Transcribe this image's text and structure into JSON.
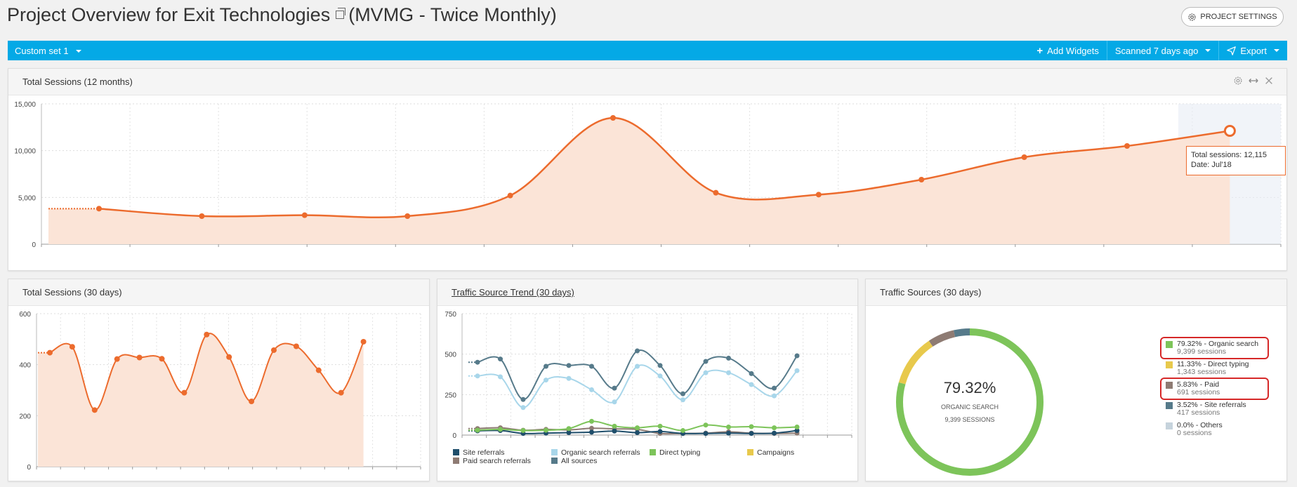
{
  "header": {
    "title": "Project Overview for Exit Technologies",
    "subtitle": "(MVMG - Twice Monthly)",
    "settings_label": "PROJECT SETTINGS"
  },
  "toolbar": {
    "custom_set": "Custom set 1",
    "add_widgets": "Add Widgets",
    "scanned": "Scanned 7 days ago",
    "export": "Export",
    "accent": "#04a9e6"
  },
  "widgets": {
    "sessions_12m": {
      "title": "Total Sessions (12 months)",
      "tooltip_line1": "Total sessions: 12,115",
      "tooltip_line2": "Date: Jul'18"
    },
    "sessions_30d": {
      "title": "Total Sessions (30 days)"
    },
    "trend_30d": {
      "title": "Traffic Source Trend (30 days)"
    },
    "sources_30d": {
      "title": "Traffic Sources (30 days)",
      "center_value": "79.32%",
      "center_label": "ORGANIC SEARCH",
      "center_sessions": "9,399 SESSIONS",
      "legend": [
        {
          "label": "79.32% - Organic search",
          "sessions": "9,399 sessions",
          "color": "#7dc45a",
          "highlight": true
        },
        {
          "label": "11.33% - Direct typing",
          "sessions": "1,343 sessions",
          "color": "#e8c94c",
          "highlight": false
        },
        {
          "label": "5.83% - Paid",
          "sessions": "691 sessions",
          "color": "#8e7b73",
          "highlight": true
        },
        {
          "label": "3.52% - Site referrals",
          "sessions": "417 sessions",
          "color": "#567a8a",
          "highlight": false
        },
        {
          "label": "0.0% - Others",
          "sessions": "0 sessions",
          "color": "#c6d3dc",
          "highlight": false
        }
      ]
    }
  },
  "chart_data": [
    {
      "type": "area",
      "title": "Total Sessions (12 months)",
      "y_ticks": [
        "15,000",
        "10,000",
        "5,000",
        "0"
      ],
      "ylim": [
        0,
        15000
      ],
      "values": [
        3800,
        3000,
        3100,
        3000,
        5200,
        13500,
        5500,
        5300,
        6900,
        9300,
        10500,
        12115
      ],
      "color": "#ec6b2d"
    },
    {
      "type": "area",
      "title": "Total Sessions (30 days)",
      "y_ticks": [
        "600",
        "400",
        "200",
        "0"
      ],
      "ylim": [
        0,
        600
      ],
      "values": [
        447,
        470,
        222,
        422,
        428,
        423,
        290,
        518,
        430,
        256,
        457,
        472,
        378,
        290,
        490
      ],
      "color": "#ec6b2d"
    },
    {
      "type": "line",
      "title": "Traffic Source Trend (30 days)",
      "y_ticks": [
        "750",
        "500",
        "250",
        "0"
      ],
      "ylim": [
        0,
        750
      ],
      "series": [
        {
          "name": "Site referrals",
          "color": "#1f4e6b",
          "values": [
            26,
            28,
            10,
            12,
            15,
            18,
            25,
            15,
            22,
            10,
            10,
            12,
            10,
            12,
            28
          ]
        },
        {
          "name": "Organic search referrals",
          "color": "#a8d6ea",
          "values": [
            365,
            360,
            170,
            340,
            350,
            280,
            205,
            425,
            365,
            218,
            385,
            385,
            312,
            242,
            398
          ]
        },
        {
          "name": "Direct typing",
          "color": "#7dc45a",
          "values": [
            30,
            35,
            28,
            30,
            40,
            85,
            55,
            45,
            55,
            28,
            62,
            50,
            52,
            45,
            50
          ]
        },
        {
          "name": "Campaigns",
          "color": "#e8c94c",
          "values": [
            0,
            0,
            0,
            0,
            0,
            0,
            0,
            0,
            0,
            0,
            0,
            0,
            0,
            0,
            0
          ]
        },
        {
          "name": "Paid search referrals",
          "color": "#8e7b73",
          "values": [
            40,
            45,
            30,
            35,
            32,
            42,
            38,
            35,
            10,
            10,
            12,
            20,
            12,
            10,
            12
          ]
        },
        {
          "name": "All sources",
          "color": "#567a8a",
          "values": [
            450,
            470,
            220,
            425,
            430,
            425,
            290,
            520,
            430,
            255,
            455,
            475,
            380,
            290,
            490
          ]
        }
      ]
    },
    {
      "type": "pie",
      "title": "Traffic Sources (30 days)",
      "slices": [
        {
          "name": "Organic search",
          "value": 79.32,
          "color": "#7dc45a"
        },
        {
          "name": "Direct typing",
          "value": 11.33,
          "color": "#e8c94c"
        },
        {
          "name": "Paid",
          "value": 5.83,
          "color": "#8e7b73"
        },
        {
          "name": "Site referrals",
          "value": 3.52,
          "color": "#567a8a"
        },
        {
          "name": "Others",
          "value": 0.0,
          "color": "#c6d3dc"
        }
      ]
    }
  ]
}
